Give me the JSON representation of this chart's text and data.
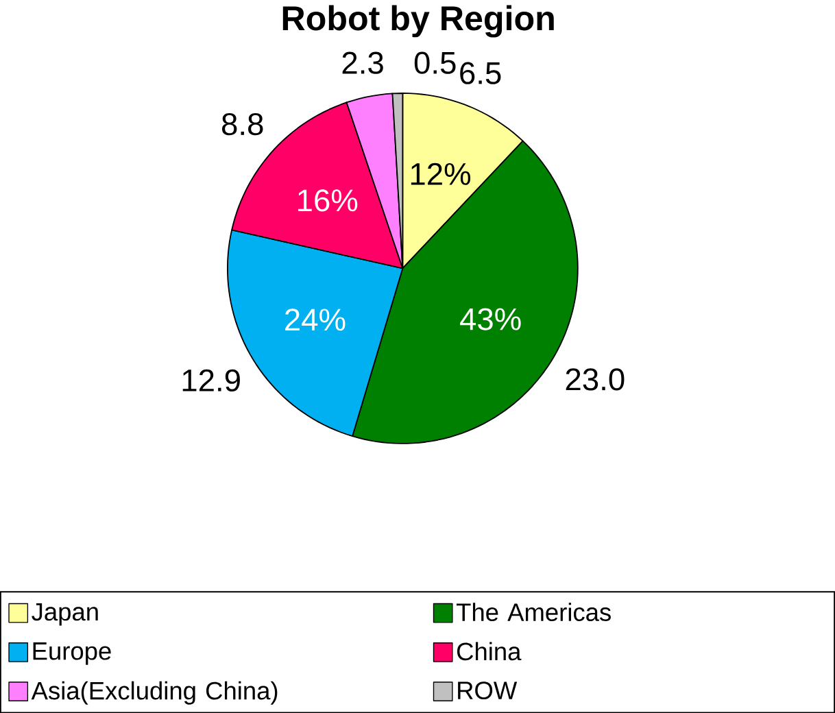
{
  "chart_data": {
    "type": "pie",
    "title": "Robot by Region",
    "categories": [
      "Japan",
      "The Americas",
      "Europe",
      "China",
      "Asia(Excluding China)",
      "ROW"
    ],
    "values": [
      6.5,
      23.0,
      12.9,
      8.8,
      2.3,
      0.5
    ],
    "colors": [
      "#ffff99",
      "#008000",
      "#00b0f0",
      "#ff0066",
      "#ff80ff",
      "#c0c0c0"
    ],
    "annotations": [
      {
        "text": "12%",
        "x": "Japan"
      },
      {
        "text": "43%",
        "x": "The Americas"
      },
      {
        "text": "24%",
        "x": "Europe"
      },
      {
        "text": "16%",
        "x": "China"
      }
    ],
    "value_labels": [
      "6.5",
      "23.0",
      "12.9",
      "8.8",
      "2.3",
      "0.5"
    ],
    "legend": "bottom"
  }
}
